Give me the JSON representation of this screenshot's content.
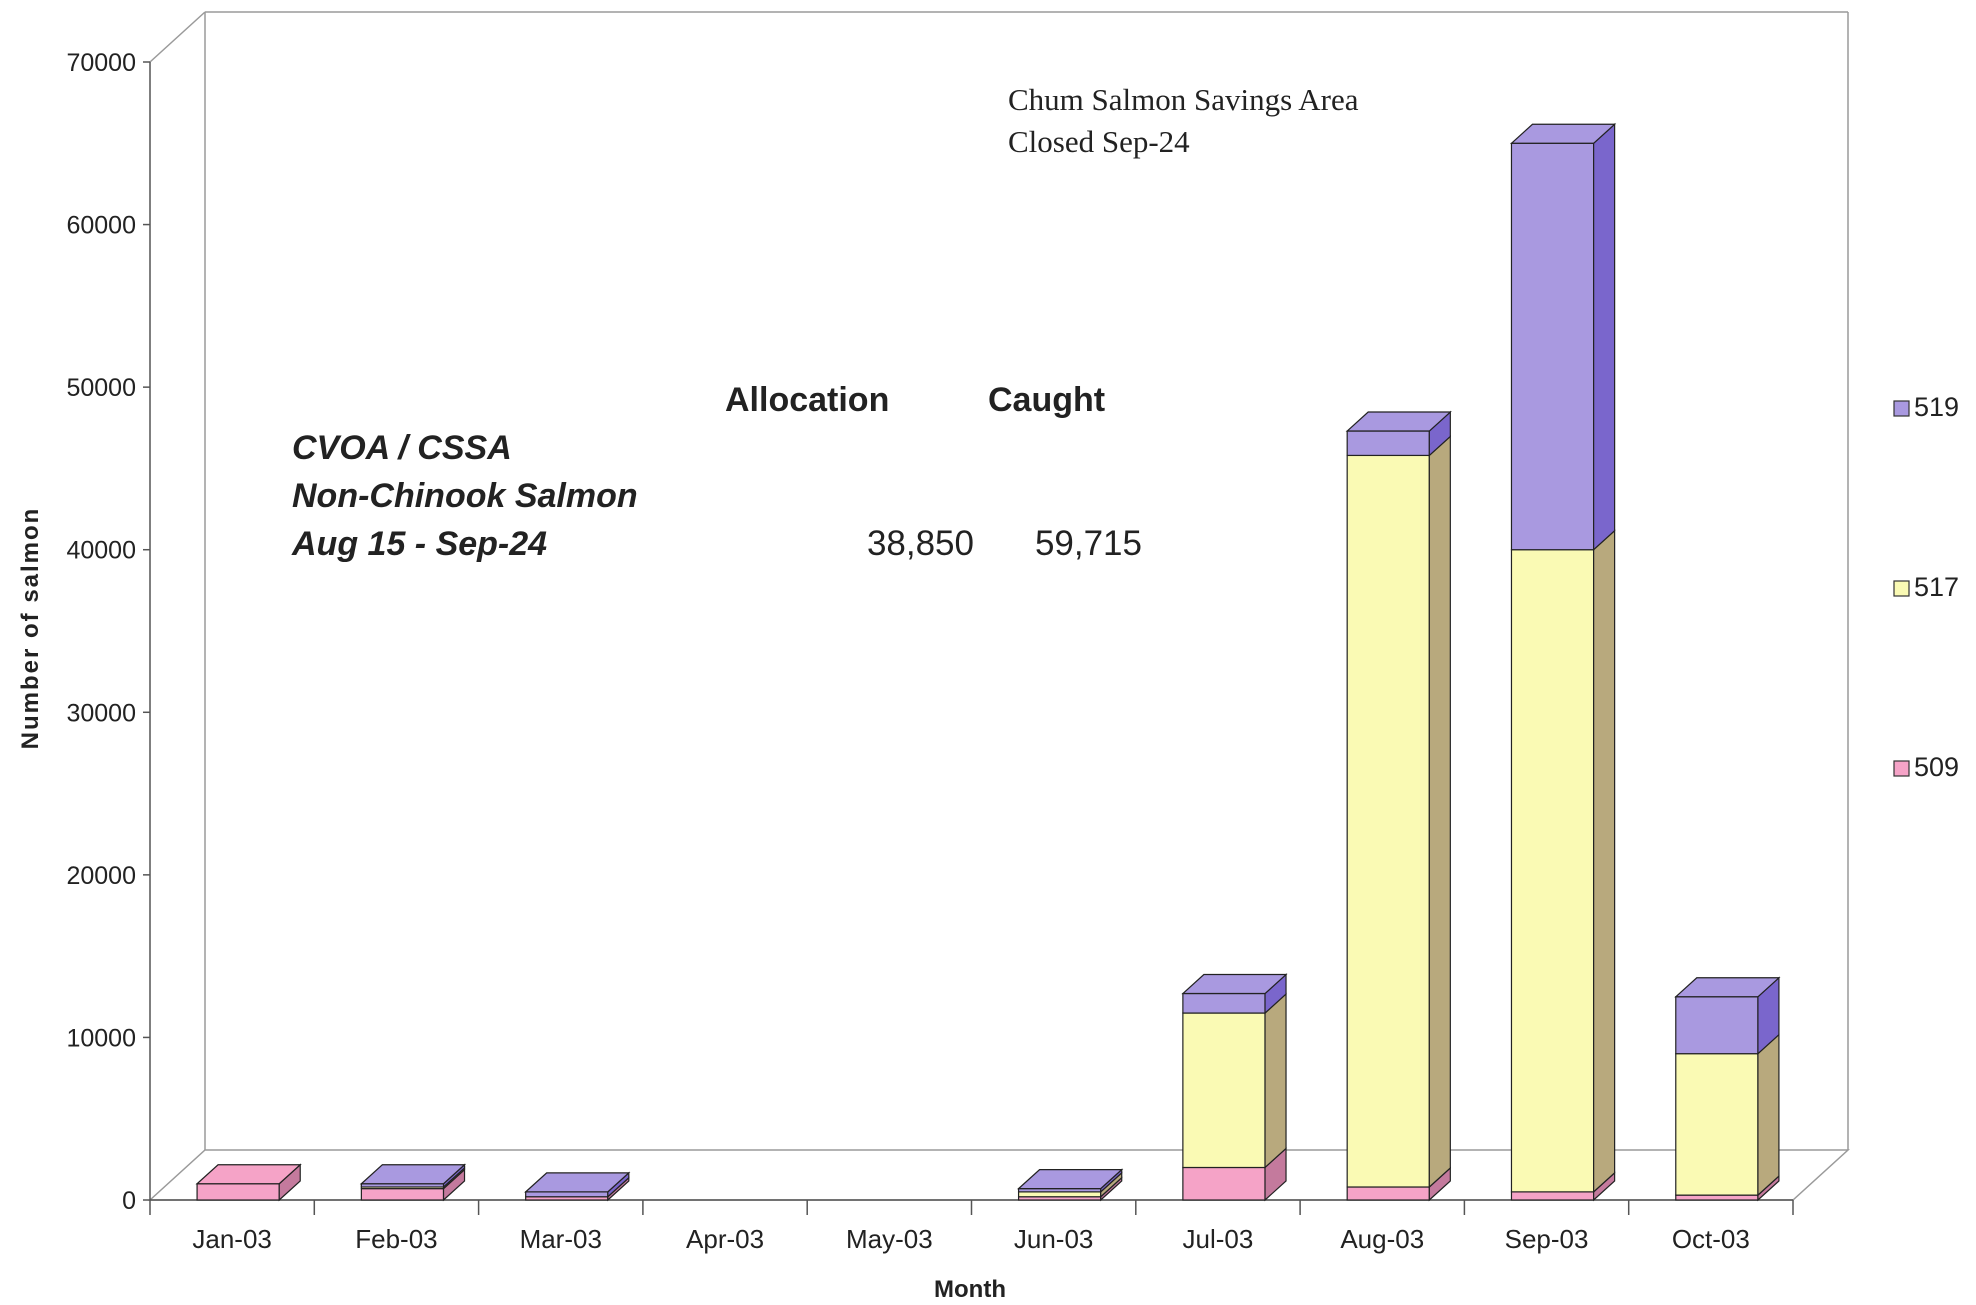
{
  "chart_data": {
    "type": "bar",
    "stacked": true,
    "three_d": true,
    "title": "",
    "xlabel": "Month",
    "ylabel": "Number of salmon",
    "ylim": [
      0,
      70000
    ],
    "yticks": [
      0,
      10000,
      20000,
      30000,
      40000,
      50000,
      60000,
      70000
    ],
    "grid": false,
    "legend_position": "right",
    "categories": [
      "Jan-03",
      "Feb-03",
      "Mar-03",
      "Apr-03",
      "May-03",
      "Jun-03",
      "Jul-03",
      "Aug-03",
      "Sep-03",
      "Oct-03"
    ],
    "series": [
      {
        "name": "509",
        "color": "#f5a3c7",
        "side": "#c47a9d",
        "values": [
          1000,
          700,
          200,
          0,
          0,
          200,
          2000,
          800,
          500,
          300
        ]
      },
      {
        "name": "517",
        "color": "#fafab4",
        "side": "#b8a97d",
        "values": [
          0,
          100,
          0,
          0,
          0,
          300,
          9500,
          45000,
          39500,
          8700
        ]
      },
      {
        "name": "519",
        "color": "#a999e0",
        "side": "#7a66cc",
        "values": [
          0,
          200,
          300,
          0,
          0,
          200,
          1200,
          1500,
          25000,
          3500
        ]
      }
    ],
    "annotations": {
      "savings_area": [
        "Chum Salmon Savings Area",
        "Closed Sep-24"
      ],
      "region_lines": [
        "CVOA / CSSA",
        "Non-Chinook Salmon",
        "Aug 15 - Sep-24"
      ],
      "allocation_header": "Allocation",
      "caught_header": "Caught",
      "allocation_value": "38,850",
      "caught_value": "59,715"
    }
  }
}
